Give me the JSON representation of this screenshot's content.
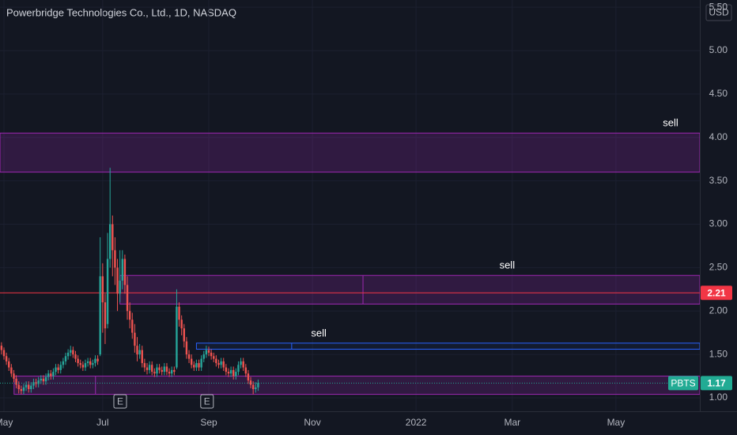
{
  "chart_data": {
    "type": "candlestick",
    "title": "Powerbridge Technologies Co., Ltd., 1D, NASDAQ",
    "currency": "USD",
    "up_color": "#26a69a",
    "down_color": "#ef5350",
    "open": [
      1.6,
      1.55,
      1.48,
      1.42,
      1.35,
      1.28,
      1.22,
      1.15,
      1.1,
      1.08,
      1.12,
      1.15,
      1.1,
      1.14,
      1.18,
      1.16,
      1.2,
      1.22,
      1.19,
      1.24,
      1.28,
      1.25,
      1.3,
      1.35,
      1.32,
      1.38,
      1.42,
      1.48,
      1.52,
      1.55,
      1.5,
      1.45,
      1.4,
      1.38,
      1.35,
      1.4,
      1.42,
      1.38,
      1.4,
      1.45,
      1.5,
      2.4,
      2.1,
      1.85,
      2.6,
      3.0,
      2.7,
      2.5,
      2.2,
      2.35,
      2.6,
      2.3,
      2.0,
      1.9,
      1.75,
      1.6,
      1.5,
      1.55,
      1.4,
      1.35,
      1.32,
      1.38,
      1.3,
      1.28,
      1.35,
      1.32,
      1.3,
      1.36,
      1.3,
      1.28,
      1.32,
      1.35,
      2.05,
      1.9,
      1.8,
      1.65,
      1.5,
      1.45,
      1.38,
      1.35,
      1.4,
      1.35,
      1.45,
      1.5,
      1.55,
      1.52,
      1.48,
      1.45,
      1.4,
      1.38,
      1.42,
      1.35,
      1.3,
      1.28,
      1.32,
      1.25,
      1.3,
      1.38,
      1.42,
      1.35,
      1.28,
      1.2,
      1.15,
      1.1,
      1.12
    ],
    "high": [
      1.64,
      1.58,
      1.52,
      1.46,
      1.39,
      1.32,
      1.26,
      1.19,
      1.14,
      1.16,
      1.19,
      1.19,
      1.18,
      1.22,
      1.22,
      1.24,
      1.26,
      1.26,
      1.28,
      1.32,
      1.32,
      1.34,
      1.39,
      1.39,
      1.42,
      1.46,
      1.52,
      1.56,
      1.6,
      1.59,
      1.54,
      1.49,
      1.44,
      1.42,
      1.44,
      1.46,
      1.46,
      1.44,
      1.49,
      1.49,
      2.85,
      2.55,
      2.2,
      2.9,
      3.65,
      3.1,
      2.85,
      2.6,
      2.7,
      2.7,
      2.65,
      2.4,
      2.1,
      1.98,
      1.85,
      1.7,
      1.62,
      1.6,
      1.45,
      1.4,
      1.42,
      1.42,
      1.34,
      1.39,
      1.39,
      1.36,
      1.4,
      1.4,
      1.34,
      1.36,
      1.36,
      2.25,
      2.1,
      1.95,
      1.85,
      1.7,
      1.55,
      1.5,
      1.42,
      1.44,
      1.44,
      1.49,
      1.54,
      1.6,
      1.59,
      1.56,
      1.52,
      1.49,
      1.44,
      1.46,
      1.46,
      1.39,
      1.34,
      1.36,
      1.36,
      1.34,
      1.42,
      1.46,
      1.46,
      1.39,
      1.32,
      1.24,
      1.19,
      1.18,
      1.21
    ],
    "low": [
      1.5,
      1.44,
      1.38,
      1.31,
      1.24,
      1.18,
      1.11,
      1.05,
      1.04,
      1.04,
      1.08,
      1.06,
      1.06,
      1.1,
      1.12,
      1.12,
      1.16,
      1.15,
      1.15,
      1.2,
      1.21,
      1.21,
      1.26,
      1.28,
      1.28,
      1.34,
      1.38,
      1.44,
      1.48,
      1.46,
      1.41,
      1.36,
      1.34,
      1.31,
      1.31,
      1.36,
      1.34,
      1.34,
      1.36,
      1.38,
      1.48,
      1.75,
      1.62,
      1.8,
      2.5,
      2.4,
      2.3,
      2.0,
      2.1,
      2.25,
      2.2,
      1.9,
      1.8,
      1.68,
      1.52,
      1.42,
      1.45,
      1.35,
      1.3,
      1.27,
      1.28,
      1.26,
      1.24,
      1.24,
      1.28,
      1.26,
      1.26,
      1.26,
      1.24,
      1.24,
      1.26,
      1.33,
      1.82,
      1.72,
      1.58,
      1.45,
      1.4,
      1.34,
      1.31,
      1.31,
      1.31,
      1.31,
      1.41,
      1.46,
      1.48,
      1.44,
      1.41,
      1.36,
      1.34,
      1.34,
      1.31,
      1.26,
      1.24,
      1.24,
      1.21,
      1.21,
      1.26,
      1.34,
      1.31,
      1.24,
      1.16,
      1.11,
      1.04,
      1.06,
      1.08
    ],
    "close": [
      1.55,
      1.48,
      1.42,
      1.35,
      1.28,
      1.22,
      1.15,
      1.1,
      1.08,
      1.12,
      1.15,
      1.1,
      1.14,
      1.18,
      1.16,
      1.2,
      1.22,
      1.19,
      1.24,
      1.28,
      1.25,
      1.3,
      1.35,
      1.32,
      1.38,
      1.42,
      1.48,
      1.52,
      1.55,
      1.5,
      1.45,
      1.4,
      1.38,
      1.35,
      1.4,
      1.42,
      1.38,
      1.4,
      1.45,
      1.42,
      2.4,
      2.1,
      1.8,
      2.6,
      3.0,
      2.7,
      2.5,
      2.2,
      2.35,
      2.6,
      2.3,
      2.0,
      1.9,
      1.75,
      1.6,
      1.5,
      1.55,
      1.4,
      1.35,
      1.32,
      1.38,
      1.3,
      1.28,
      1.35,
      1.32,
      1.3,
      1.36,
      1.3,
      1.28,
      1.32,
      1.3,
      2.05,
      1.9,
      1.8,
      1.65,
      1.5,
      1.45,
      1.38,
      1.35,
      1.4,
      1.35,
      1.45,
      1.5,
      1.55,
      1.52,
      1.48,
      1.45,
      1.4,
      1.38,
      1.42,
      1.35,
      1.3,
      1.28,
      1.32,
      1.25,
      1.3,
      1.38,
      1.42,
      1.35,
      1.28,
      1.2,
      1.15,
      1.1,
      1.12,
      1.17
    ],
    "xlim": [
      -0.6,
      283
    ],
    "xticks": [
      {
        "value": 1,
        "label": "May"
      },
      {
        "value": 41,
        "label": "Jul"
      },
      {
        "value": 84,
        "label": "Sep"
      },
      {
        "value": 126,
        "label": "Nov"
      },
      {
        "value": 168,
        "label": "2022"
      },
      {
        "value": 207,
        "label": "Mar"
      },
      {
        "value": 249,
        "label": "May"
      }
    ],
    "ylim": [
      0.845,
      5.583
    ],
    "yticks": [
      {
        "value": 1,
        "label": "1.00"
      },
      {
        "value": 1.5,
        "label": "1.50"
      },
      {
        "value": 2,
        "label": "2.00"
      },
      {
        "value": 2.5,
        "label": "2.50"
      },
      {
        "value": 3,
        "label": "3.00"
      },
      {
        "value": 3.5,
        "label": "3.50"
      },
      {
        "value": 4,
        "label": "4.00"
      },
      {
        "value": 4.5,
        "label": "4.50"
      },
      {
        "value": 5,
        "label": "5.00"
      },
      {
        "value": 5.5,
        "label": "5.50"
      }
    ],
    "zones": [
      {
        "label": "sell",
        "low": 3.6,
        "high": 4.05,
        "start": -0.6,
        "color": "#9c27b0"
      },
      {
        "label": "sell",
        "low": 2.08,
        "high": 2.41,
        "start": 48,
        "divider": 146.5,
        "color": "#9c27b0"
      },
      {
        "label": "sell",
        "low": 1.56,
        "high": 1.63,
        "start": 79,
        "divider": 117.6,
        "color": "#2962ff"
      },
      {
        "low": 1.04,
        "high": 1.25,
        "start": 5.1,
        "divider": 38.1,
        "color": "#9c27b0"
      }
    ],
    "price_line": {
      "value": 2.21,
      "color": "#f23645"
    },
    "last_price": {
      "name": "PBTS",
      "value": 1.17,
      "color": "#22ab94"
    },
    "events": [
      {
        "label": "E",
        "x": 48.1
      },
      {
        "label": "E",
        "x": 83.3
      }
    ]
  }
}
